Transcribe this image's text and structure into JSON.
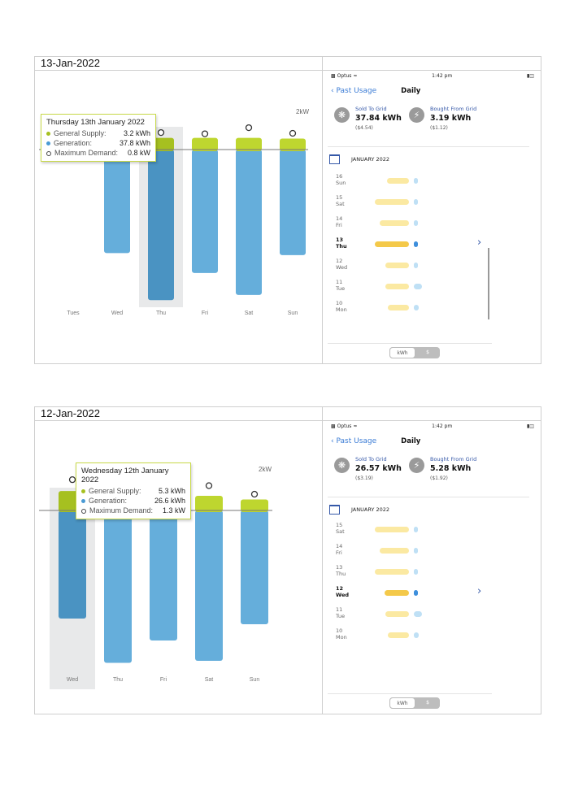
{
  "panels": [
    {
      "date_header": "13-Jan-2022",
      "chart": {
        "unit_label": "2kW",
        "highlight_index": 2,
        "days": [
          "Tues",
          "Wed",
          "Thu",
          "Fri",
          "Sat",
          "Sun"
        ],
        "general_supply_kwh": [
          null,
          3.0,
          3.2,
          3.2,
          3.2,
          3.0
        ],
        "generation_kwh": [
          null,
          26.0,
          37.8,
          31.0,
          36.5,
          26.5
        ],
        "max_demand_kw": [
          null,
          null,
          0.8,
          0.7,
          1.2,
          0.8
        ],
        "tooltip": {
          "title": "Thursday 13th January 2022",
          "rows": [
            {
              "label": "General Supply:",
              "value": "3.2 kWh",
              "marker": "dot-green"
            },
            {
              "label": "Generation:",
              "value": "37.8 kWh",
              "marker": "dot-blue"
            },
            {
              "label": "Maximum Demand:",
              "value": "0.8 kW",
              "marker": "circle-open"
            }
          ]
        }
      },
      "phone": {
        "carrier": "Optus",
        "time": "1:42 pm",
        "nav_back": "Past Usage",
        "nav_title": "Daily",
        "sold_label": "Sold To Grid",
        "sold_value": "37.84 kWh",
        "sold_cost": "($4.54)",
        "bought_label": "Bought From Grid",
        "bought_value": "3.19 kWh",
        "bought_cost": "($1.12)",
        "month": "JANUARY 2022",
        "days": [
          {
            "num": "16",
            "dow": "Sun",
            "yellow": 0.55,
            "blue": 0.1,
            "selected": false
          },
          {
            "num": "15",
            "dow": "Sat",
            "yellow": 0.85,
            "blue": 0.1,
            "selected": false
          },
          {
            "num": "14",
            "dow": "Fri",
            "yellow": 0.72,
            "blue": 0.1,
            "selected": false
          },
          {
            "num": "13",
            "dow": "Thu",
            "yellow": 0.85,
            "blue": 0.1,
            "selected": true
          },
          {
            "num": "12",
            "dow": "Wed",
            "yellow": 0.58,
            "blue": 0.2,
            "selected": false
          },
          {
            "num": "11",
            "dow": "Tue",
            "yellow": 0.58,
            "blue": 0.5,
            "selected": false
          },
          {
            "num": "10",
            "dow": "Mon",
            "yellow": 0.52,
            "blue": 0.32,
            "selected": false
          }
        ],
        "toggle": [
          "kWh",
          "$"
        ]
      }
    },
    {
      "date_header": "12-Jan-2022",
      "chart": {
        "unit_label": "2kW",
        "highlight_index": 0,
        "days": [
          "Wed",
          "Thu",
          "Fri",
          "Sat",
          "Sun"
        ],
        "general_supply_kwh": [
          5.3,
          4.0,
          4.0,
          4.0,
          3.0
        ],
        "generation_kwh": [
          26.6,
          37.5,
          32.0,
          37.0,
          28.0
        ],
        "max_demand_kw": [
          1.3,
          null,
          null,
          1.2,
          0.8
        ],
        "tooltip": {
          "title": "Wednesday 12th January 2022",
          "rows": [
            {
              "label": "General Supply:",
              "value": "5.3 kWh",
              "marker": "dot-green"
            },
            {
              "label": "Generation:",
              "value": "26.6 kWh",
              "marker": "dot-blue"
            },
            {
              "label": "Maximum Demand:",
              "value": "1.3 kW",
              "marker": "circle-open"
            }
          ]
        }
      },
      "phone": {
        "carrier": "Optus",
        "time": "1:42 pm",
        "nav_back": "Past Usage",
        "nav_title": "Daily",
        "sold_label": "Sold To Grid",
        "sold_value": "26.57 kWh",
        "sold_cost": "($3.19)",
        "bought_label": "Bought From Grid",
        "bought_value": "5.28 kWh",
        "bought_cost": "($1.92)",
        "month": "JANUARY 2022",
        "days": [
          {
            "num": "15",
            "dow": "Sat",
            "yellow": 0.85,
            "blue": 0.1,
            "selected": false
          },
          {
            "num": "14",
            "dow": "Fri",
            "yellow": 0.72,
            "blue": 0.1,
            "selected": false
          },
          {
            "num": "13",
            "dow": "Thu",
            "yellow": 0.85,
            "blue": 0.1,
            "selected": false
          },
          {
            "num": "12",
            "dow": "Wed",
            "yellow": 0.6,
            "blue": 0.2,
            "selected": true
          },
          {
            "num": "11",
            "dow": "Tue",
            "yellow": 0.58,
            "blue": 0.5,
            "selected": false
          },
          {
            "num": "10",
            "dow": "Mon",
            "yellow": 0.52,
            "blue": 0.32,
            "selected": false
          }
        ],
        "toggle": [
          "kWh",
          "$"
        ]
      }
    }
  ]
}
